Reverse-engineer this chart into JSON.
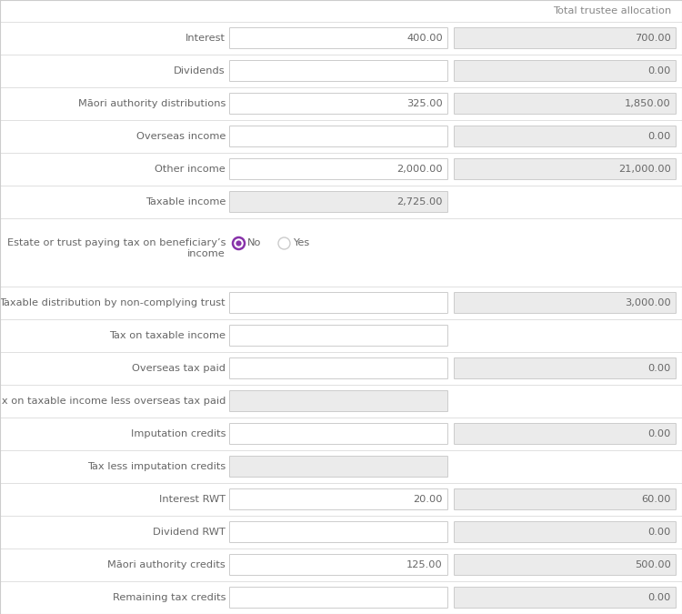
{
  "bg_color": "#ffffff",
  "border_color": "#cccccc",
  "separator_color": "#e0e0e0",
  "field_bg_white": "#ffffff",
  "field_bg_gray": "#ebebeb",
  "text_color": "#666666",
  "header_text_color": "#888888",
  "radio_selected_color": "#8833aa",
  "header_label": "Total trustee allocation",
  "rows": [
    {
      "label": "Interest",
      "col1": "400.00",
      "col2": "700.00",
      "col1_gray": false,
      "col2_gray": true,
      "show_col2": true
    },
    {
      "label": "Dividends",
      "col1": "",
      "col2": "0.00",
      "col1_gray": false,
      "col2_gray": true,
      "show_col2": true
    },
    {
      "label": "Māori authority distributions",
      "col1": "325.00",
      "col2": "1,850.00",
      "col1_gray": false,
      "col2_gray": true,
      "show_col2": true
    },
    {
      "label": "Overseas income",
      "col1": "",
      "col2": "0.00",
      "col1_gray": false,
      "col2_gray": true,
      "show_col2": true
    },
    {
      "label": "Other income",
      "col1": "2,000.00",
      "col2": "21,000.00",
      "col1_gray": false,
      "col2_gray": true,
      "show_col2": true
    },
    {
      "label": "Taxable income",
      "col1": "2,725.00",
      "col2": "",
      "col1_gray": true,
      "col2_gray": false,
      "show_col2": false
    }
  ],
  "radio_label_line1": "Estate or trust paying tax on beneficiary’s",
  "radio_label_line2": "income",
  "radio_selected": "No",
  "radio_options": [
    "No",
    "Yes"
  ],
  "rows2": [
    {
      "label": "Taxable distribution by non-complying trust",
      "col1": "",
      "col2": "3,000.00",
      "col1_gray": false,
      "col2_gray": true,
      "show_col2": true
    },
    {
      "label": "Tax on taxable income",
      "col1": "",
      "col2": "",
      "col1_gray": false,
      "col2_gray": false,
      "show_col2": false
    },
    {
      "label": "Overseas tax paid",
      "col1": "",
      "col2": "0.00",
      "col1_gray": false,
      "col2_gray": true,
      "show_col2": true
    },
    {
      "label": "Tax on taxable income less overseas tax paid",
      "col1": "",
      "col2": "",
      "col1_gray": true,
      "col2_gray": false,
      "show_col2": false
    },
    {
      "label": "Imputation credits",
      "col1": "",
      "col2": "0.00",
      "col1_gray": false,
      "col2_gray": true,
      "show_col2": true
    },
    {
      "label": "Tax less imputation credits",
      "col1": "",
      "col2": "",
      "col1_gray": true,
      "col2_gray": false,
      "show_col2": false
    },
    {
      "label": "Interest RWT",
      "col1": "20.00",
      "col2": "60.00",
      "col1_gray": false,
      "col2_gray": true,
      "show_col2": true
    },
    {
      "label": "Dividend RWT",
      "col1": "",
      "col2": "0.00",
      "col1_gray": false,
      "col2_gray": true,
      "show_col2": true
    },
    {
      "label": "Māori authority credits",
      "col1": "125.00",
      "col2": "500.00",
      "col1_gray": false,
      "col2_gray": true,
      "show_col2": true
    },
    {
      "label": "Remaining tax credits",
      "col1": "",
      "col2": "0.00",
      "col1_gray": false,
      "col2_gray": true,
      "show_col2": true
    }
  ]
}
